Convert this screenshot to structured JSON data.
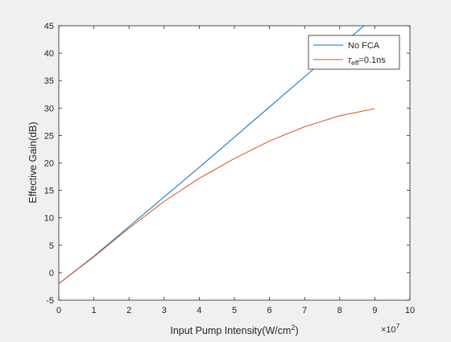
{
  "chart_data": {
    "type": "line",
    "xlabel": "Input Pump Intensity(W/cm",
    "xlabel_sup": "2",
    "xlabel_tail": ")",
    "ylabel": "Effective Gain(dB)",
    "x_exponent_base": "×10",
    "x_exponent_power": "7",
    "xlim": [
      0,
      10
    ],
    "ylim": [
      -5,
      45
    ],
    "xticks": [
      0,
      1,
      2,
      3,
      4,
      5,
      6,
      7,
      8,
      9,
      10
    ],
    "yticks": [
      -5,
      0,
      5,
      10,
      15,
      20,
      25,
      30,
      35,
      40,
      45
    ],
    "grid": false,
    "legend_position": "top-right",
    "series": [
      {
        "name": "No FCA",
        "color": "#0072BD",
        "x": [
          0,
          1,
          2,
          3,
          4,
          5,
          6,
          7,
          8,
          9
        ],
        "y": [
          -2.0,
          3.0,
          8.4,
          13.8,
          19.2,
          24.7,
          30.2,
          35.7,
          41.2,
          46.7
        ]
      },
      {
        "name_symbol": "τ",
        "name_sub": "eff",
        "name_tail": "=0.1ns",
        "color": "#D95319",
        "x": [
          0,
          1,
          2,
          3,
          4,
          5,
          6,
          7,
          8,
          9
        ],
        "y": [
          -2.0,
          2.9,
          8.1,
          13.0,
          17.2,
          20.8,
          24.0,
          26.6,
          28.6,
          29.9
        ]
      }
    ]
  }
}
